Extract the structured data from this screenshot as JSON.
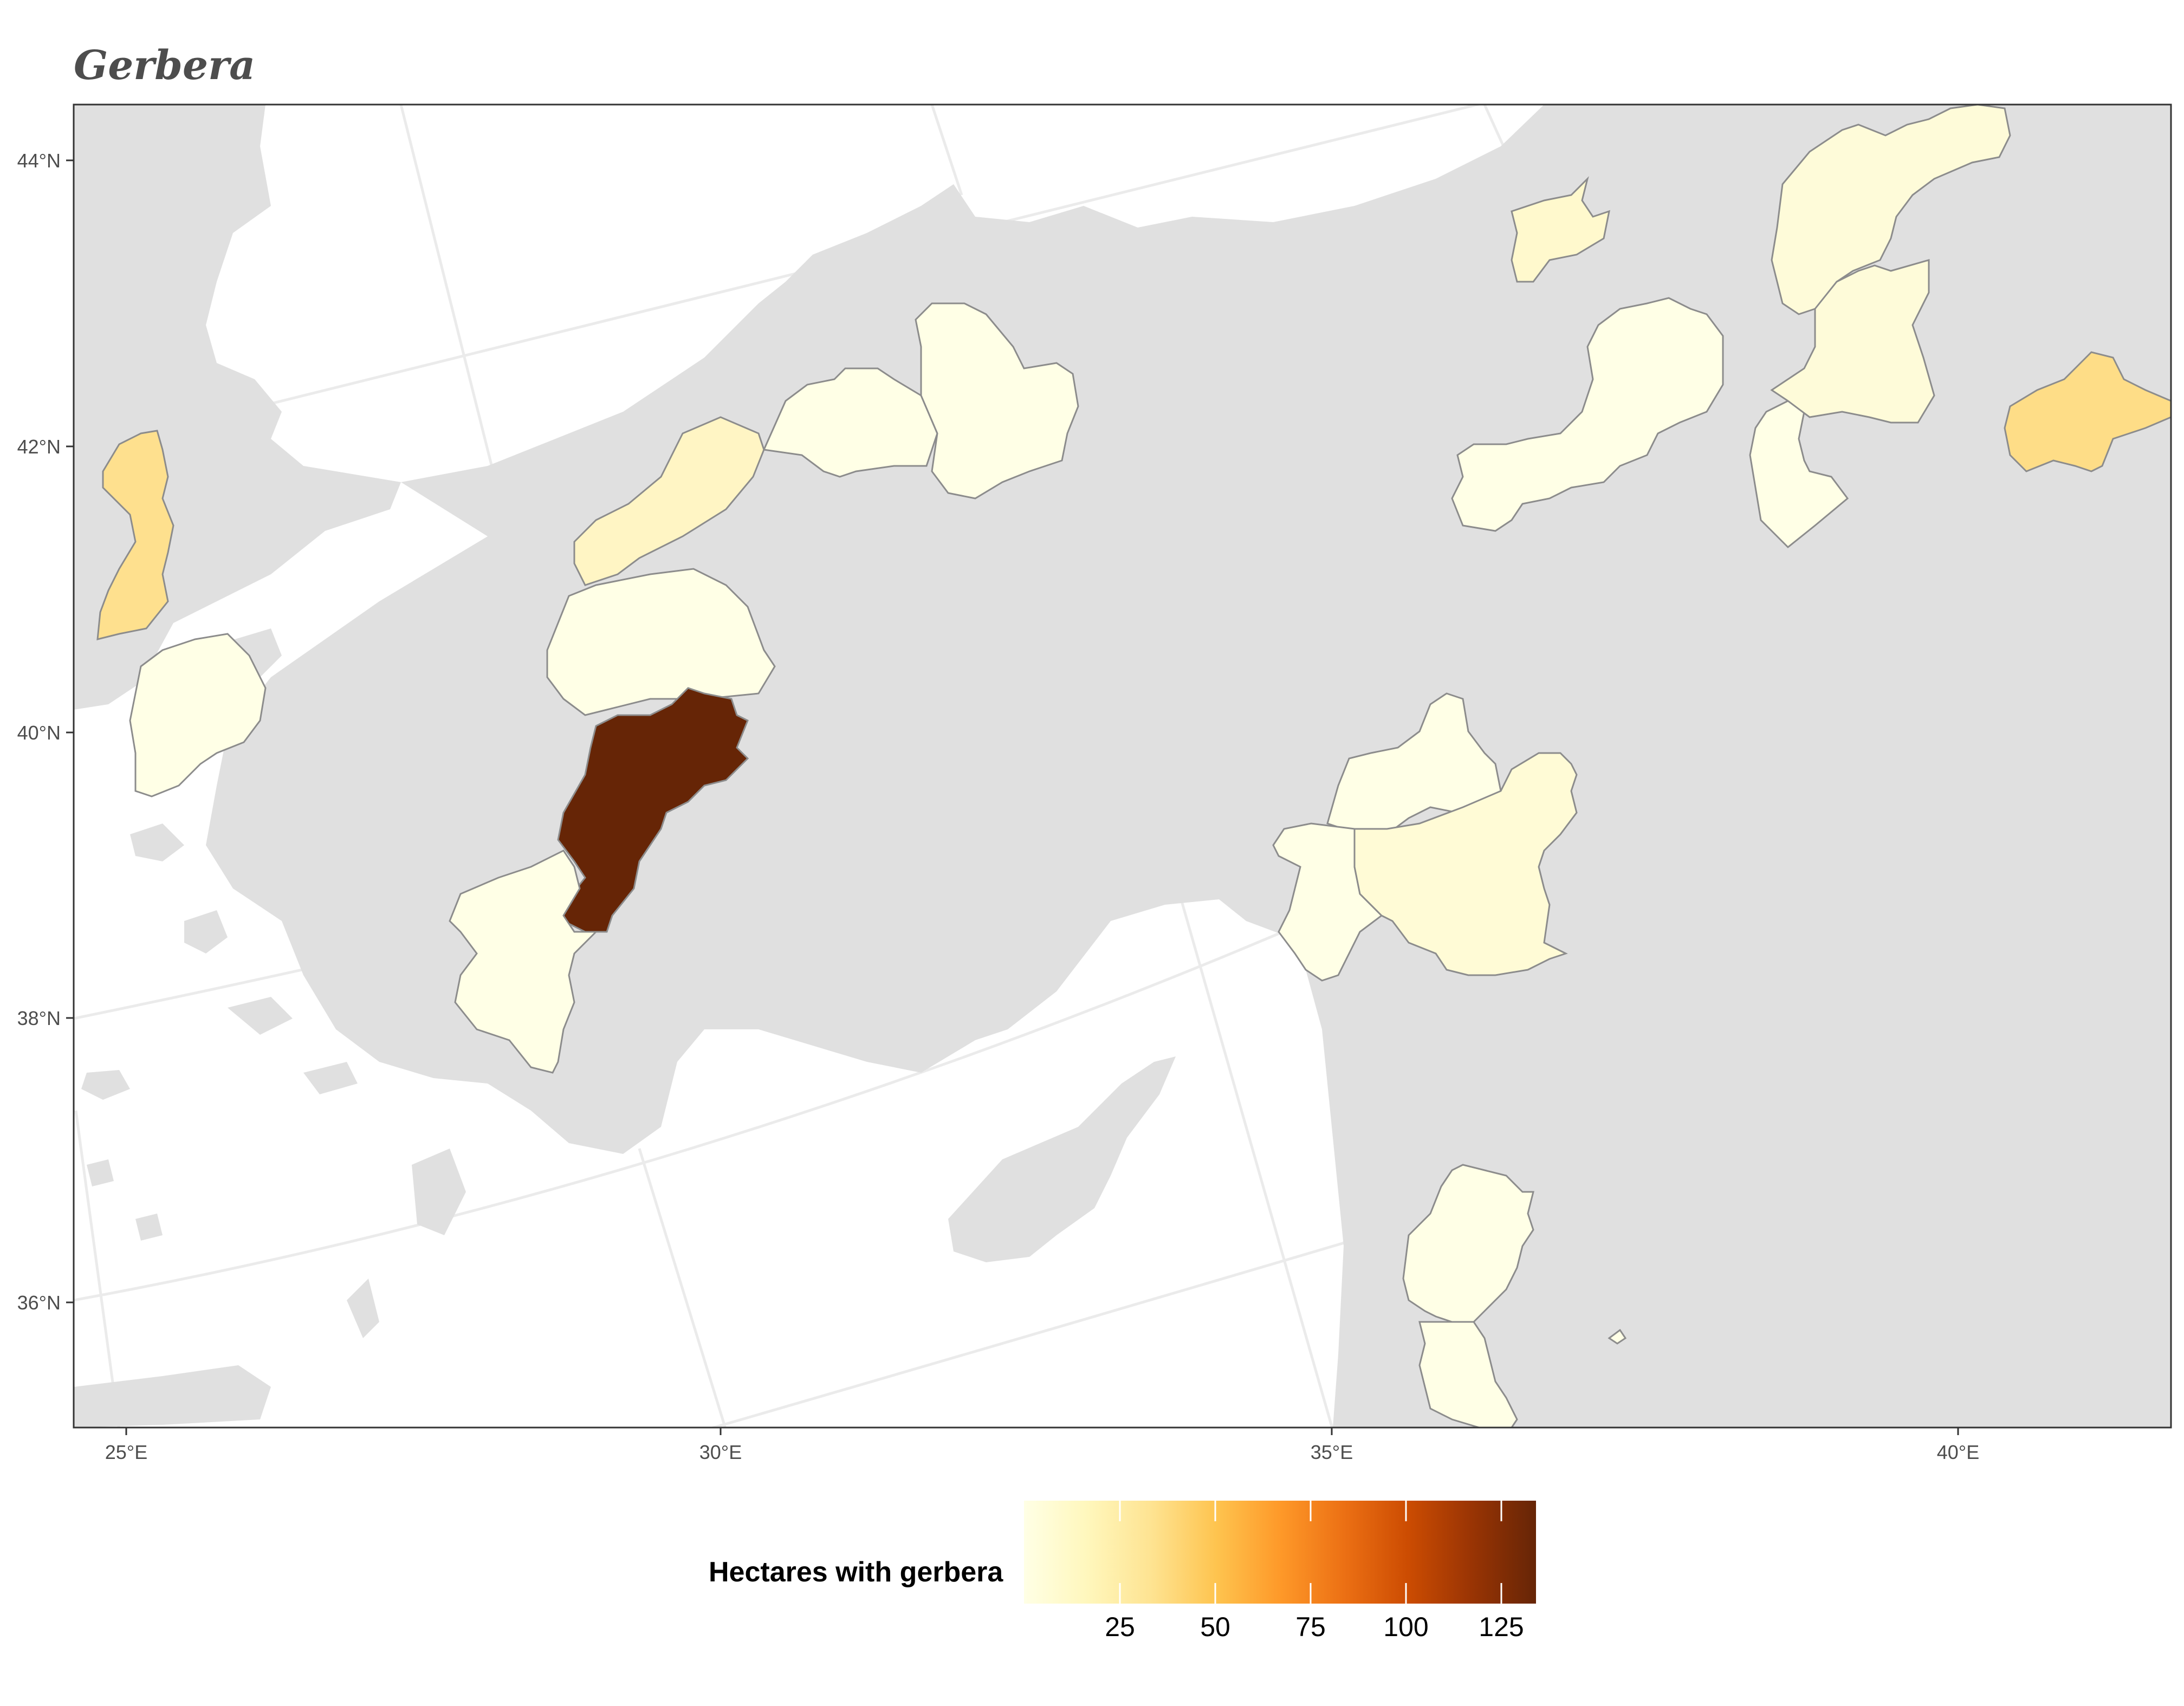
{
  "title": "Gerbera",
  "map": {
    "lat_labels": [
      "44°N",
      "42°N",
      "40°N",
      "38°N",
      "36°N"
    ],
    "lon_labels": [
      "25°E",
      "30°E",
      "35°E",
      "40°E"
    ],
    "colors": {
      "land": "#e0e0e0",
      "sea": "#ffffff",
      "graticule": "#ebebeb",
      "border": "#8c8c8c",
      "panel_border": "#333333"
    },
    "regions_shaded": [
      {
        "name": "Edirne",
        "value": 40
      },
      {
        "name": "Canakkale",
        "value": 5
      },
      {
        "name": "Bursa",
        "value": 5
      },
      {
        "name": "Bilecik",
        "value": 15
      },
      {
        "name": "Bolu",
        "value": 5
      },
      {
        "name": "Karabuk",
        "value": 5
      },
      {
        "name": "Kutahya",
        "value": 135
      },
      {
        "name": "Usak",
        "value": 5
      },
      {
        "name": "Sinop",
        "value": 10
      },
      {
        "name": "Samsun",
        "value": 5
      },
      {
        "name": "Amasya",
        "value": 5
      },
      {
        "name": "Trabzon",
        "value": 10
      },
      {
        "name": "Gumushane",
        "value": 10
      },
      {
        "name": "Erzincan",
        "value": 8
      },
      {
        "name": "Erzurum",
        "value": 38
      },
      {
        "name": "Nevsehir",
        "value": 5
      },
      {
        "name": "Kayseri",
        "value": 10
      },
      {
        "name": "Nigde",
        "value": 5
      },
      {
        "name": "Gaziantep",
        "value": 8
      },
      {
        "name": "Kilis",
        "value": 5
      }
    ]
  },
  "legend": {
    "title": "Hectares with gerbera",
    "ticks": [
      "25",
      "50",
      "75",
      "100",
      "125"
    ],
    "range": [
      1,
      135
    ],
    "gradient": [
      "#ffffe5",
      "#fff7bc",
      "#fee391",
      "#fec44f",
      "#fe9929",
      "#ec7014",
      "#cc4c02",
      "#993404",
      "#662506"
    ]
  }
}
